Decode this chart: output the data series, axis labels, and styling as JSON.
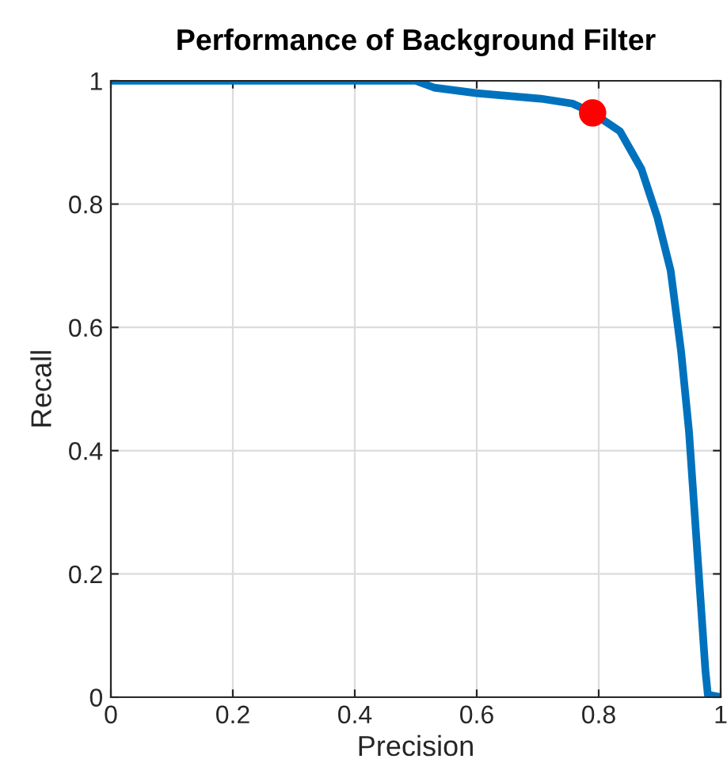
{
  "chart_data": {
    "type": "line",
    "title": "Performance of Background Filter",
    "xlabel": "Precision",
    "ylabel": "Recall",
    "series": [
      {
        "color": "#0072bd",
        "x": [
          0,
          0.3,
          0.5,
          0.53,
          0.6,
          0.705,
          0.757,
          0.79,
          0.835,
          0.87,
          0.896,
          0.918,
          0.935,
          0.948,
          0.957,
          0.966,
          0.975,
          0.979,
          1.0
        ],
        "values": [
          1,
          1,
          1,
          0.989,
          0.98,
          0.971,
          0.963,
          0.948,
          0.918,
          0.857,
          0.779,
          0.692,
          0.562,
          0.432,
          0.303,
          0.173,
          0.043,
          0.004,
          0
        ]
      },
      {
        "type": "scatter",
        "color": "#ff0000",
        "marker": "circle",
        "x": [
          0.79
        ],
        "values": [
          0.948
        ]
      }
    ],
    "xlim": [
      0,
      1
    ],
    "ylim": [
      0,
      1
    ],
    "xticks": [
      0,
      0.2,
      0.4,
      0.6,
      0.8,
      1
    ],
    "yticks": [
      0,
      0.2,
      0.4,
      0.6,
      0.8,
      1
    ],
    "grid": true
  }
}
